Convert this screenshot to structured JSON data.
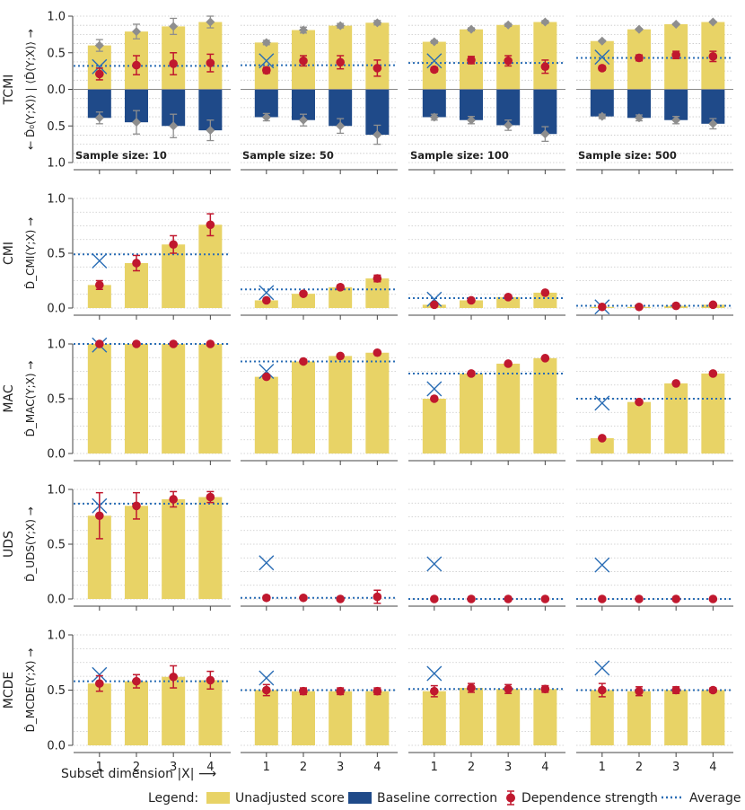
{
  "colors": {
    "unadjusted": "#e8d366",
    "baseline": "#1f4a89",
    "dependence": "#c0182e",
    "average": "#2a6db5",
    "cross": "#2a6db5",
    "baseline_marker": "#8e8e8e",
    "grid": "#c8c8c8",
    "axis": "#444444"
  },
  "legend": {
    "title": "Legend:",
    "unadjusted": "Unadjusted score",
    "baseline": "Baseline correction",
    "dependence": "Dependence strength",
    "average": "Average"
  },
  "x_axis_label": "Subset dimension |X| ⟶",
  "chart_data": {
    "type": "bar",
    "x_ticks": [
      "1",
      "2",
      "3",
      "4"
    ],
    "sample_sizes": [
      10,
      50,
      100,
      500
    ],
    "sample_size_labels": [
      "Sample size: 10",
      "Sample size: 50",
      "Sample size: 100",
      "Sample size: 500"
    ],
    "rows": [
      {
        "name": "TCMI",
        "ylabel": "← D̂₀(Y;X)⟩ | ⟨D̂(Y;X)⟩ →",
        "ylim": [
          -1,
          1
        ],
        "yticks": [
          "1.0",
          "0.5",
          "0.0",
          "0.5",
          "1.0"
        ],
        "panels": [
          {
            "unadjusted": [
              0.6,
              0.79,
              0.86,
              0.92
            ],
            "unadjusted_err": [
              0.08,
              0.1,
              0.11,
              0.08
            ],
            "baseline": [
              -0.39,
              -0.45,
              -0.5,
              -0.56
            ],
            "baseline_err": [
              0.08,
              0.16,
              0.16,
              0.14
            ],
            "dependence": [
              0.21,
              0.33,
              0.35,
              0.36
            ],
            "dependence_err": [
              0.08,
              0.13,
              0.15,
              0.12
            ],
            "cross": 0.31,
            "average": 0.32
          },
          {
            "unadjusted": [
              0.64,
              0.81,
              0.87,
              0.91
            ],
            "unadjusted_err": [
              0.03,
              0.04,
              0.03,
              0.03
            ],
            "baseline": [
              -0.38,
              -0.42,
              -0.5,
              -0.62
            ],
            "baseline_err": [
              0.05,
              0.08,
              0.1,
              0.13
            ],
            "dependence": [
              0.26,
              0.39,
              0.37,
              0.29
            ],
            "dependence_err": [
              0.04,
              0.07,
              0.09,
              0.11
            ],
            "cross": 0.39,
            "average": 0.33
          },
          {
            "unadjusted": [
              0.65,
              0.82,
              0.88,
              0.92
            ],
            "unadjusted_err": [
              0.02,
              0.02,
              0.02,
              0.02
            ],
            "baseline": [
              -0.38,
              -0.42,
              -0.49,
              -0.61
            ],
            "baseline_err": [
              0.04,
              0.05,
              0.07,
              0.1
            ],
            "dependence": [
              0.27,
              0.4,
              0.39,
              0.31
            ],
            "dependence_err": [
              0.03,
              0.05,
              0.07,
              0.09
            ],
            "cross": 0.39,
            "average": 0.36
          },
          {
            "unadjusted": [
              0.66,
              0.82,
              0.89,
              0.92
            ],
            "unadjusted_err": [
              0.01,
              0.01,
              0.01,
              0.01
            ],
            "baseline": [
              -0.37,
              -0.39,
              -0.42,
              -0.47
            ],
            "baseline_err": [
              0.03,
              0.04,
              0.05,
              0.07
            ],
            "dependence": [
              0.29,
              0.43,
              0.47,
              0.45
            ],
            "dependence_err": [
              0.03,
              0.04,
              0.05,
              0.07
            ],
            "cross": 0.44,
            "average": 0.43
          }
        ]
      },
      {
        "name": "CMI",
        "ylabel": "D̂_CMI(Y;X) →",
        "ylim": [
          0,
          1
        ],
        "yticks": [
          "0.0",
          "0.5",
          "1.0"
        ],
        "panels": [
          {
            "unadjusted": [
              0.21,
              0.41,
              0.58,
              0.76
            ],
            "dependence": [
              0.21,
              0.41,
              0.58,
              0.76
            ],
            "dependence_err": [
              0.04,
              0.07,
              0.08,
              0.1
            ],
            "cross": 0.43,
            "average": 0.49
          },
          {
            "unadjusted": [
              0.07,
              0.13,
              0.19,
              0.27
            ],
            "dependence": [
              0.07,
              0.13,
              0.19,
              0.27
            ],
            "dependence_err": [
              0.01,
              0.01,
              0.02,
              0.03
            ],
            "cross": 0.14,
            "average": 0.17
          },
          {
            "unadjusted": [
              0.03,
              0.07,
              0.1,
              0.14
            ],
            "dependence": [
              0.03,
              0.07,
              0.1,
              0.14
            ],
            "dependence_err": [
              0.01,
              0.01,
              0.01,
              0.01
            ],
            "cross": 0.08,
            "average": 0.09
          },
          {
            "unadjusted": [
              0.01,
              0.01,
              0.02,
              0.03
            ],
            "dependence": [
              0.01,
              0.01,
              0.02,
              0.03
            ],
            "dependence_err": [
              0.0,
              0.0,
              0.0,
              0.0
            ],
            "cross": 0.01,
            "average": 0.02
          }
        ]
      },
      {
        "name": "MAC",
        "ylabel": "D̂_MAC(Y;X) →",
        "ylim": [
          0,
          1
        ],
        "yticks": [
          "0.0",
          "0.5",
          "1.0"
        ],
        "panels": [
          {
            "unadjusted": [
              1.0,
              1.0,
              1.0,
              1.0
            ],
            "dependence": [
              1.0,
              1.0,
              1.0,
              1.0
            ],
            "dependence_err": [
              0,
              0,
              0,
              0
            ],
            "cross": 0.99,
            "average": 1.0
          },
          {
            "unadjusted": [
              0.7,
              0.84,
              0.89,
              0.92
            ],
            "dependence": [
              0.7,
              0.84,
              0.89,
              0.92
            ],
            "dependence_err": [
              0,
              0,
              0,
              0
            ],
            "cross": 0.75,
            "average": 0.84
          },
          {
            "unadjusted": [
              0.5,
              0.73,
              0.82,
              0.87
            ],
            "dependence": [
              0.5,
              0.73,
              0.82,
              0.87
            ],
            "dependence_err": [
              0,
              0,
              0,
              0
            ],
            "cross": 0.59,
            "average": 0.73
          },
          {
            "unadjusted": [
              0.14,
              0.47,
              0.64,
              0.73
            ],
            "dependence": [
              0.14,
              0.47,
              0.64,
              0.73
            ],
            "dependence_err": [
              0,
              0,
              0,
              0
            ],
            "cross": 0.46,
            "average": 0.5
          }
        ]
      },
      {
        "name": "UDS",
        "ylabel": "D̂_UDS(Y;X) →",
        "ylim": [
          0,
          1
        ],
        "yticks": [
          "0.0",
          "0.5",
          "1.0"
        ],
        "panels": [
          {
            "unadjusted": [
              0.76,
              0.85,
              0.91,
              0.93
            ],
            "dependence": [
              0.76,
              0.85,
              0.91,
              0.93
            ],
            "dependence_err": [
              0.21,
              0.12,
              0.07,
              0.05
            ],
            "cross": 0.85,
            "average": 0.87
          },
          {
            "unadjusted": [
              0.0,
              0.0,
              0.0,
              0.0
            ],
            "dependence": [
              0.01,
              0.01,
              0.0,
              0.02
            ],
            "dependence_err": [
              0.02,
              0.01,
              0.01,
              0.06
            ],
            "cross": 0.33,
            "average": 0.01
          },
          {
            "unadjusted": [
              0.0,
              0.0,
              0.0,
              0.0
            ],
            "dependence": [
              0.0,
              0.0,
              0.0,
              0.0
            ],
            "dependence_err": [
              0,
              0,
              0,
              0
            ],
            "cross": 0.32,
            "average": 0.0
          },
          {
            "unadjusted": [
              0.0,
              0.0,
              0.0,
              0.0
            ],
            "dependence": [
              0.0,
              0.0,
              0.0,
              0.0
            ],
            "dependence_err": [
              0,
              0,
              0,
              0
            ],
            "cross": 0.31,
            "average": 0.0
          }
        ]
      },
      {
        "name": "MCDE",
        "ylabel": "D̂_MCDE(Y;X) →",
        "ylim": [
          0,
          1
        ],
        "yticks": [
          "0.0",
          "0.5",
          "1.0"
        ],
        "panels": [
          {
            "unadjusted": [
              0.56,
              0.58,
              0.62,
              0.59
            ],
            "dependence": [
              0.56,
              0.58,
              0.62,
              0.59
            ],
            "dependence_err": [
              0.07,
              0.06,
              0.1,
              0.08
            ],
            "cross": 0.64,
            "average": 0.58
          },
          {
            "unadjusted": [
              0.5,
              0.49,
              0.49,
              0.49
            ],
            "dependence": [
              0.5,
              0.49,
              0.49,
              0.49
            ],
            "dependence_err": [
              0.05,
              0.03,
              0.03,
              0.03
            ],
            "cross": 0.61,
            "average": 0.5
          },
          {
            "unadjusted": [
              0.49,
              0.52,
              0.51,
              0.51
            ],
            "dependence": [
              0.49,
              0.52,
              0.51,
              0.51
            ],
            "dependence_err": [
              0.05,
              0.04,
              0.04,
              0.03
            ],
            "cross": 0.65,
            "average": 0.51
          },
          {
            "unadjusted": [
              0.5,
              0.49,
              0.5,
              0.5
            ],
            "dependence": [
              0.5,
              0.49,
              0.5,
              0.5
            ],
            "dependence_err": [
              0.06,
              0.04,
              0.03,
              0.02
            ],
            "cross": 0.7,
            "average": 0.5
          }
        ]
      }
    ]
  }
}
